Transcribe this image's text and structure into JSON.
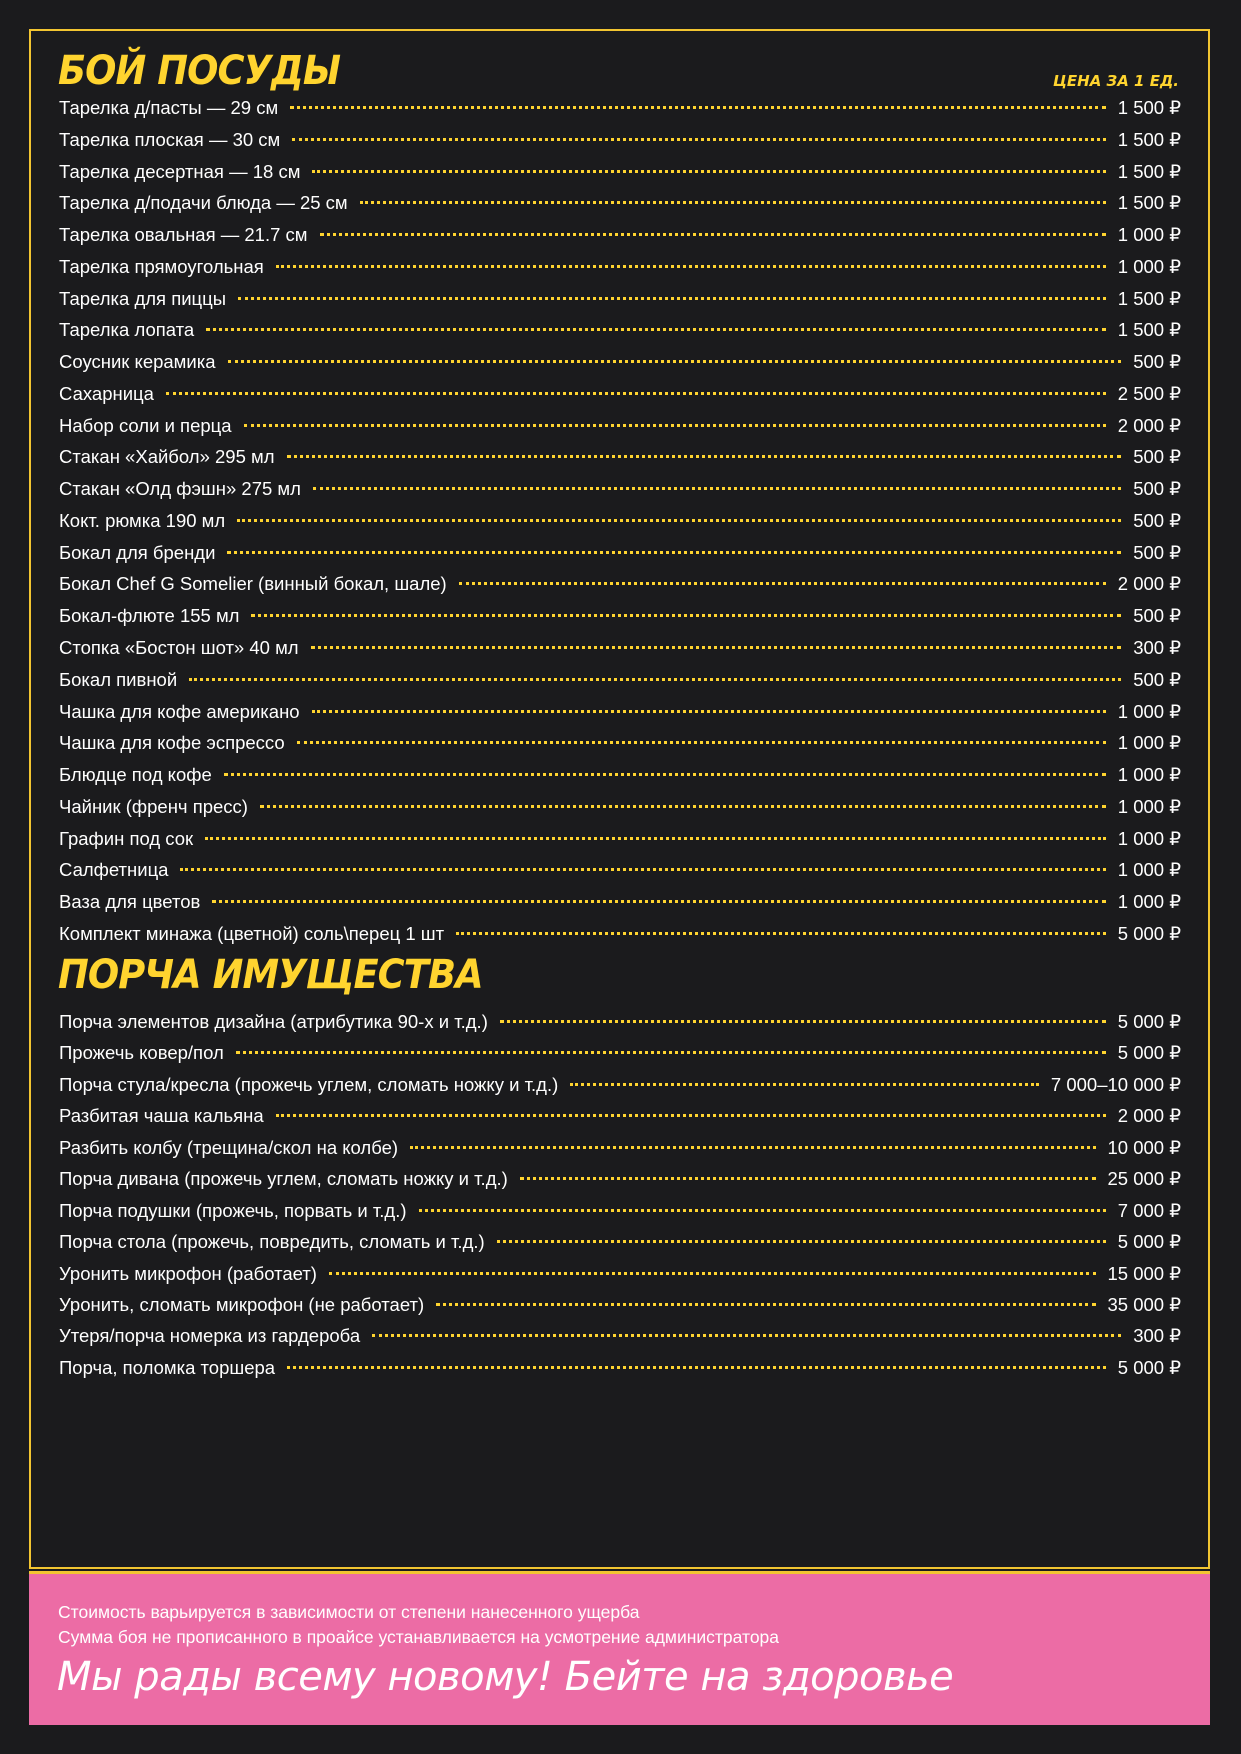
{
  "colors": {
    "background": "#1b1b1d",
    "accent": "#ffd42f",
    "footer": "#ec6ca5"
  },
  "section1": {
    "title": "БОЙ ПОСУДЫ",
    "price_header": "ЦЕНА ЗА 1 ЕД.",
    "items": [
      {
        "name": "Тарелка д/пасты — 29 см",
        "price": "1 500 ₽"
      },
      {
        "name": "Тарелка плоская — 30 см",
        "price": "1 500 ₽"
      },
      {
        "name": "Тарелка десертная — 18 см",
        "price": "1 500 ₽"
      },
      {
        "name": "Тарелка д/подачи блюда — 25 см",
        "price": "1 500 ₽"
      },
      {
        "name": "Тарелка овальная — 21.7 см",
        "price": "1 000 ₽"
      },
      {
        "name": "Тарелка прямоугольная",
        "price": "1 000 ₽"
      },
      {
        "name": "Тарелка для пиццы",
        "price": "1 500 ₽"
      },
      {
        "name": "Тарелка лопата",
        "price": "1 500 ₽"
      },
      {
        "name": "Соусник керамика",
        "price": "500 ₽"
      },
      {
        "name": "Сахарница",
        "price": "2 500 ₽"
      },
      {
        "name": "Набор соли и перца",
        "price": "2 000 ₽"
      },
      {
        "name": "Стакан «Хайбол» 295 мл",
        "price": "500 ₽"
      },
      {
        "name": "Стакан «Олд фэшн» 275 мл",
        "price": "500 ₽"
      },
      {
        "name": "Кокт. рюмка 190 мл",
        "price": "500 ₽"
      },
      {
        "name": "Бокал для бренди",
        "price": "500 ₽"
      },
      {
        "name": "Бокал Chef G Somelier (винный бокал, шале)",
        "price": "2 000 ₽"
      },
      {
        "name": "Бокал-флюте 155 мл",
        "price": "500 ₽"
      },
      {
        "name": "Стопка «Бостон шот» 40 мл",
        "price": "300 ₽"
      },
      {
        "name": "Бокал пивной",
        "price": "500 ₽"
      },
      {
        "name": "Чашка для кофе американо",
        "price": "1 000 ₽"
      },
      {
        "name": "Чашка для кофе эспрессо",
        "price": "1 000 ₽"
      },
      {
        "name": "Блюдце под кофе",
        "price": "1 000 ₽"
      },
      {
        "name": "Чайник (френч пресс)",
        "price": "1 000 ₽"
      },
      {
        "name": "Графин под сок",
        "price": "1 000 ₽"
      },
      {
        "name": "Салфетница",
        "price": "1 000 ₽"
      },
      {
        "name": "Ваза для цветов",
        "price": "1 000 ₽"
      },
      {
        "name": "Комплект минажа (цветной) соль\\перец 1 шт",
        "price": "5 000 ₽"
      }
    ]
  },
  "section2": {
    "title": "ПОРЧА ИМУЩЕСТВА",
    "items": [
      {
        "name": "Порча элементов дизайна (атрибутика 90-х и т.д.)",
        "price": "5 000 ₽"
      },
      {
        "name": "Прожечь ковер/пол",
        "price": "5 000 ₽"
      },
      {
        "name": "Порча стула/кресла (прожечь углем, сломать ножку и т.д.)",
        "price": "7 000–10 000 ₽"
      },
      {
        "name": "Разбитая чаша кальяна",
        "price": "2 000 ₽"
      },
      {
        "name": "Разбить колбу (трещина/скол на колбе)",
        "price": "10 000 ₽"
      },
      {
        "name": "Порча дивана (прожечь углем, сломать ножку и т.д.)",
        "price": "25 000 ₽"
      },
      {
        "name": "Порча подушки (прожечь, порвать и т.д.)",
        "price": "7 000 ₽"
      },
      {
        "name": "Порча стола (прожечь, повредить, сломать и т.д.)",
        "price": "5 000 ₽"
      },
      {
        "name": "Уронить микрофон (работает)",
        "price": "15 000 ₽"
      },
      {
        "name": "Уронить, сломать микрофон (не работает)",
        "price": "35 000 ₽"
      },
      {
        "name": "Утеря/порча номерка из гардероба",
        "price": "300 ₽"
      },
      {
        "name": "Порча, поломка торшера",
        "price": "5 000 ₽"
      }
    ]
  },
  "footer": {
    "note1": "Стоимость варьируется в зависимости от степени нанесенного ущерба",
    "note2": "Сумма боя не прописанного в проайсе устанавливается на усмотрение администратора",
    "slogan": "Мы рады всему новому! Бейте на здоровье"
  }
}
